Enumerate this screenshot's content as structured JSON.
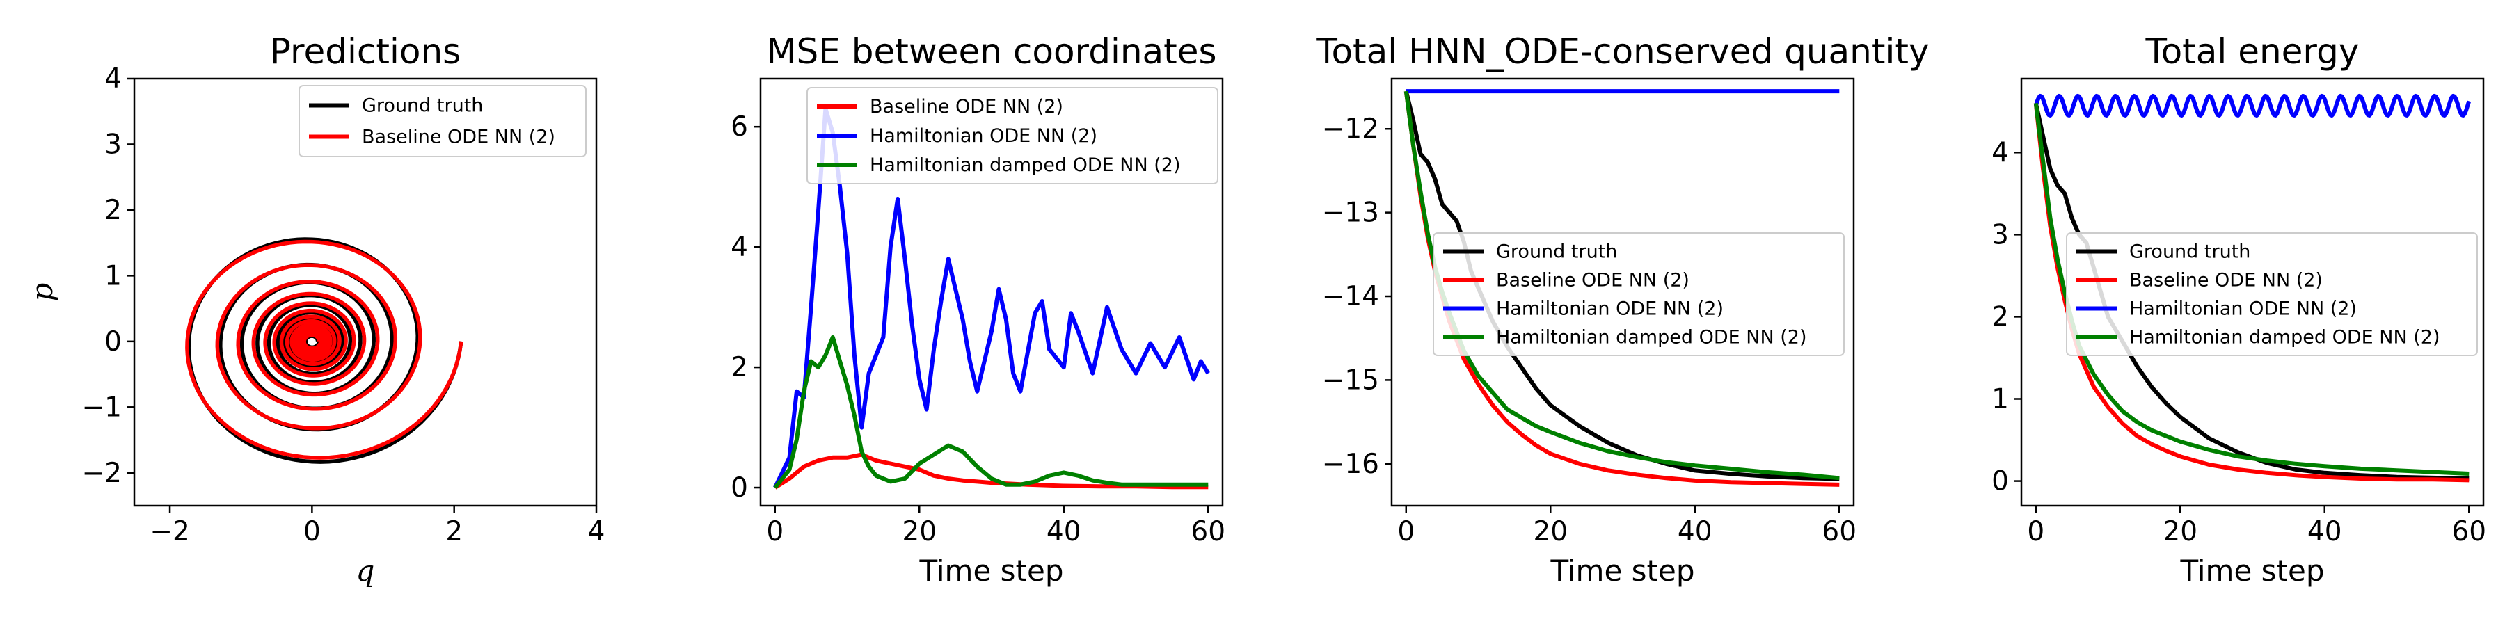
{
  "chart_data": [
    {
      "type": "line",
      "title": "Predictions",
      "xlabel": "q",
      "ylabel": "p",
      "xlim": [
        -2.5,
        4
      ],
      "ylim": [
        -2.5,
        4
      ],
      "xticks": [
        -2,
        0,
        2,
        4
      ],
      "yticks": [
        -2,
        -1,
        0,
        1,
        2,
        3,
        4
      ],
      "xtick_labels": [
        "−2",
        "0",
        "2",
        "4"
      ],
      "ytick_labels": [
        "−2",
        "−1",
        "0",
        "1",
        "2",
        "3",
        "4"
      ],
      "legend": "top-right",
      "series": [
        {
          "name": "Ground truth",
          "color": "#000000",
          "start": [
            2.1,
            0.0
          ],
          "radius_end": 0.08,
          "turns": 14
        },
        {
          "name": "Baseline ODE NN (2)",
          "color": "#ff0000",
          "start": [
            2.1,
            0.0
          ],
          "radius_end": 0.1,
          "turns": 14
        }
      ]
    },
    {
      "type": "line",
      "title": "MSE between coordinates",
      "xlabel": "Time step",
      "ylabel": "",
      "xlim": [
        -2,
        62
      ],
      "ylim": [
        -0.3,
        6.8
      ],
      "xticks": [
        0,
        20,
        40,
        60
      ],
      "yticks": [
        0,
        2,
        4,
        6
      ],
      "xtick_labels": [
        "0",
        "20",
        "40",
        "60"
      ],
      "ytick_labels": [
        "0",
        "2",
        "4",
        "6"
      ],
      "legend": "top-center",
      "series": [
        {
          "name": "Baseline ODE NN (2)",
          "color": "#ff0000",
          "x": [
            0,
            2,
            4,
            6,
            8,
            10,
            12,
            14,
            16,
            18,
            20,
            22,
            24,
            26,
            28,
            30,
            35,
            40,
            45,
            50,
            55,
            60
          ],
          "y": [
            0,
            0.15,
            0.35,
            0.45,
            0.5,
            0.5,
            0.55,
            0.45,
            0.4,
            0.35,
            0.3,
            0.2,
            0.15,
            0.12,
            0.1,
            0.08,
            0.05,
            0.03,
            0.02,
            0.02,
            0.01,
            0.01
          ]
        },
        {
          "name": "Hamiltonian ODE NN (2)",
          "color": "#0000ff",
          "x": [
            0,
            2,
            3,
            4,
            5,
            6,
            7,
            8,
            9,
            10,
            11,
            12,
            13,
            14,
            15,
            16,
            17,
            18,
            19,
            20,
            21,
            22,
            23,
            24,
            25,
            26,
            27,
            28,
            30,
            31,
            32,
            33,
            34,
            36,
            37,
            38,
            40,
            41,
            42,
            44,
            46,
            48,
            50,
            52,
            54,
            56,
            58,
            59,
            60
          ],
          "y": [
            0,
            0.5,
            1.6,
            1.5,
            3.0,
            4.6,
            6.3,
            5.9,
            5.0,
            3.9,
            2.2,
            1.0,
            1.9,
            2.2,
            2.5,
            4.0,
            4.8,
            3.8,
            2.7,
            1.8,
            1.3,
            2.3,
            3.1,
            3.8,
            3.3,
            2.8,
            2.1,
            1.6,
            2.6,
            3.3,
            2.8,
            1.9,
            1.6,
            2.9,
            3.1,
            2.3,
            2.0,
            2.9,
            2.6,
            1.9,
            3.0,
            2.3,
            1.9,
            2.4,
            2.0,
            2.5,
            1.8,
            2.1,
            1.9
          ]
        },
        {
          "name": "Hamiltonian damped ODE NN (2)",
          "color": "#008000",
          "x": [
            0,
            2,
            3,
            4,
            5,
            6,
            7,
            8,
            9,
            10,
            11,
            12,
            13,
            14,
            16,
            18,
            20,
            22,
            24,
            26,
            28,
            30,
            32,
            34,
            36,
            38,
            40,
            42,
            44,
            46,
            48,
            50,
            55,
            60
          ],
          "y": [
            0,
            0.3,
            0.8,
            1.6,
            2.1,
            2.0,
            2.2,
            2.5,
            2.1,
            1.7,
            1.2,
            0.6,
            0.35,
            0.2,
            0.1,
            0.15,
            0.4,
            0.55,
            0.7,
            0.6,
            0.35,
            0.15,
            0.05,
            0.05,
            0.1,
            0.2,
            0.25,
            0.2,
            0.12,
            0.08,
            0.05,
            0.05,
            0.05,
            0.05
          ]
        }
      ]
    },
    {
      "type": "line",
      "title": "Total HNN_ODE-conserved quantity",
      "xlabel": "Time step",
      "ylabel": "",
      "xlim": [
        -2,
        62
      ],
      "ylim": [
        -16.5,
        -11.4
      ],
      "xticks": [
        0,
        20,
        40,
        60
      ],
      "yticks": [
        -16,
        -15,
        -14,
        -13,
        -12
      ],
      "xtick_labels": [
        "0",
        "20",
        "40",
        "60"
      ],
      "ytick_labels": [
        "−16",
        "−15",
        "−14",
        "−13",
        "−12"
      ],
      "legend": "center-right",
      "series": [
        {
          "name": "Ground truth",
          "color": "#000000",
          "x": [
            0,
            1,
            2,
            3,
            4,
            5,
            6,
            7,
            8,
            9,
            10,
            12,
            14,
            16,
            18,
            20,
            24,
            28,
            32,
            36,
            40,
            45,
            50,
            55,
            60
          ],
          "y": [
            -11.55,
            -11.9,
            -12.3,
            -12.4,
            -12.6,
            -12.9,
            -13.0,
            -13.1,
            -13.35,
            -13.7,
            -13.9,
            -14.3,
            -14.6,
            -14.85,
            -15.1,
            -15.3,
            -15.55,
            -15.75,
            -15.9,
            -16.0,
            -16.08,
            -16.12,
            -16.15,
            -16.17,
            -16.18
          ]
        },
        {
          "name": "Baseline ODE NN (2)",
          "color": "#ff0000",
          "x": [
            0,
            1,
            2,
            3,
            4,
            5,
            6,
            8,
            10,
            12,
            14,
            16,
            18,
            20,
            24,
            28,
            32,
            36,
            40,
            45,
            50,
            55,
            60
          ],
          "y": [
            -11.55,
            -12.2,
            -12.8,
            -13.3,
            -13.7,
            -14.0,
            -14.3,
            -14.75,
            -15.05,
            -15.3,
            -15.5,
            -15.65,
            -15.78,
            -15.88,
            -16.0,
            -16.08,
            -16.13,
            -16.17,
            -16.2,
            -16.22,
            -16.23,
            -16.24,
            -16.25
          ]
        },
        {
          "name": "Hamiltonian ODE NN (2)",
          "color": "#0000ff",
          "x": [
            0,
            60
          ],
          "y": [
            -11.55,
            -11.55
          ]
        },
        {
          "name": "Hamiltonian damped ODE NN (2)",
          "color": "#008000",
          "x": [
            0,
            1,
            2,
            3,
            4,
            5,
            6,
            8,
            10,
            12,
            14,
            16,
            18,
            20,
            24,
            28,
            32,
            36,
            40,
            45,
            50,
            55,
            60
          ],
          "y": [
            -11.55,
            -12.2,
            -12.75,
            -13.25,
            -13.65,
            -13.95,
            -14.2,
            -14.65,
            -14.95,
            -15.15,
            -15.35,
            -15.45,
            -15.55,
            -15.62,
            -15.75,
            -15.85,
            -15.92,
            -15.98,
            -16.02,
            -16.06,
            -16.1,
            -16.13,
            -16.17
          ]
        }
      ]
    },
    {
      "type": "line",
      "title": "Total energy",
      "xlabel": "Time step",
      "ylabel": "",
      "xlim": [
        -2,
        62
      ],
      "ylim": [
        -0.3,
        4.9
      ],
      "xticks": [
        0,
        20,
        40,
        60
      ],
      "yticks": [
        0,
        1,
        2,
        3,
        4
      ],
      "xtick_labels": [
        "0",
        "20",
        "40",
        "60"
      ],
      "ytick_labels": [
        "0",
        "1",
        "2",
        "3",
        "4"
      ],
      "legend": "center-right",
      "series": [
        {
          "name": "Ground truth",
          "color": "#000000",
          "x": [
            0,
            1,
            2,
            3,
            4,
            5,
            6,
            7,
            8,
            9,
            10,
            12,
            14,
            16,
            18,
            20,
            24,
            28,
            32,
            36,
            40,
            45,
            50,
            55,
            60
          ],
          "y": [
            4.6,
            4.2,
            3.8,
            3.6,
            3.5,
            3.2,
            3.0,
            2.9,
            2.6,
            2.3,
            2.0,
            1.7,
            1.4,
            1.15,
            0.95,
            0.78,
            0.52,
            0.35,
            0.22,
            0.14,
            0.1,
            0.07,
            0.05,
            0.04,
            0.03
          ]
        },
        {
          "name": "Baseline ODE NN (2)",
          "color": "#ff0000",
          "x": [
            0,
            1,
            2,
            3,
            4,
            5,
            6,
            8,
            10,
            12,
            14,
            16,
            18,
            20,
            24,
            28,
            32,
            36,
            40,
            45,
            50,
            55,
            60
          ],
          "y": [
            4.6,
            3.8,
            3.1,
            2.6,
            2.2,
            1.85,
            1.55,
            1.15,
            0.9,
            0.7,
            0.55,
            0.45,
            0.37,
            0.3,
            0.2,
            0.14,
            0.1,
            0.07,
            0.05,
            0.03,
            0.02,
            0.02,
            0.01
          ]
        },
        {
          "name": "Hamiltonian ODE NN (2)",
          "color": "#0000ff",
          "baseline": 4.57,
          "amplitude": 0.12,
          "x": [
            0,
            60
          ]
        },
        {
          "name": "Hamiltonian damped ODE NN (2)",
          "color": "#008000",
          "x": [
            0,
            1,
            2,
            3,
            4,
            5,
            6,
            8,
            10,
            12,
            14,
            16,
            18,
            20,
            24,
            28,
            32,
            36,
            40,
            45,
            50,
            55,
            60
          ],
          "y": [
            4.6,
            3.9,
            3.2,
            2.7,
            2.3,
            1.95,
            1.65,
            1.3,
            1.05,
            0.85,
            0.72,
            0.62,
            0.55,
            0.48,
            0.38,
            0.3,
            0.25,
            0.21,
            0.18,
            0.15,
            0.13,
            0.11,
            0.09
          ]
        }
      ]
    }
  ]
}
